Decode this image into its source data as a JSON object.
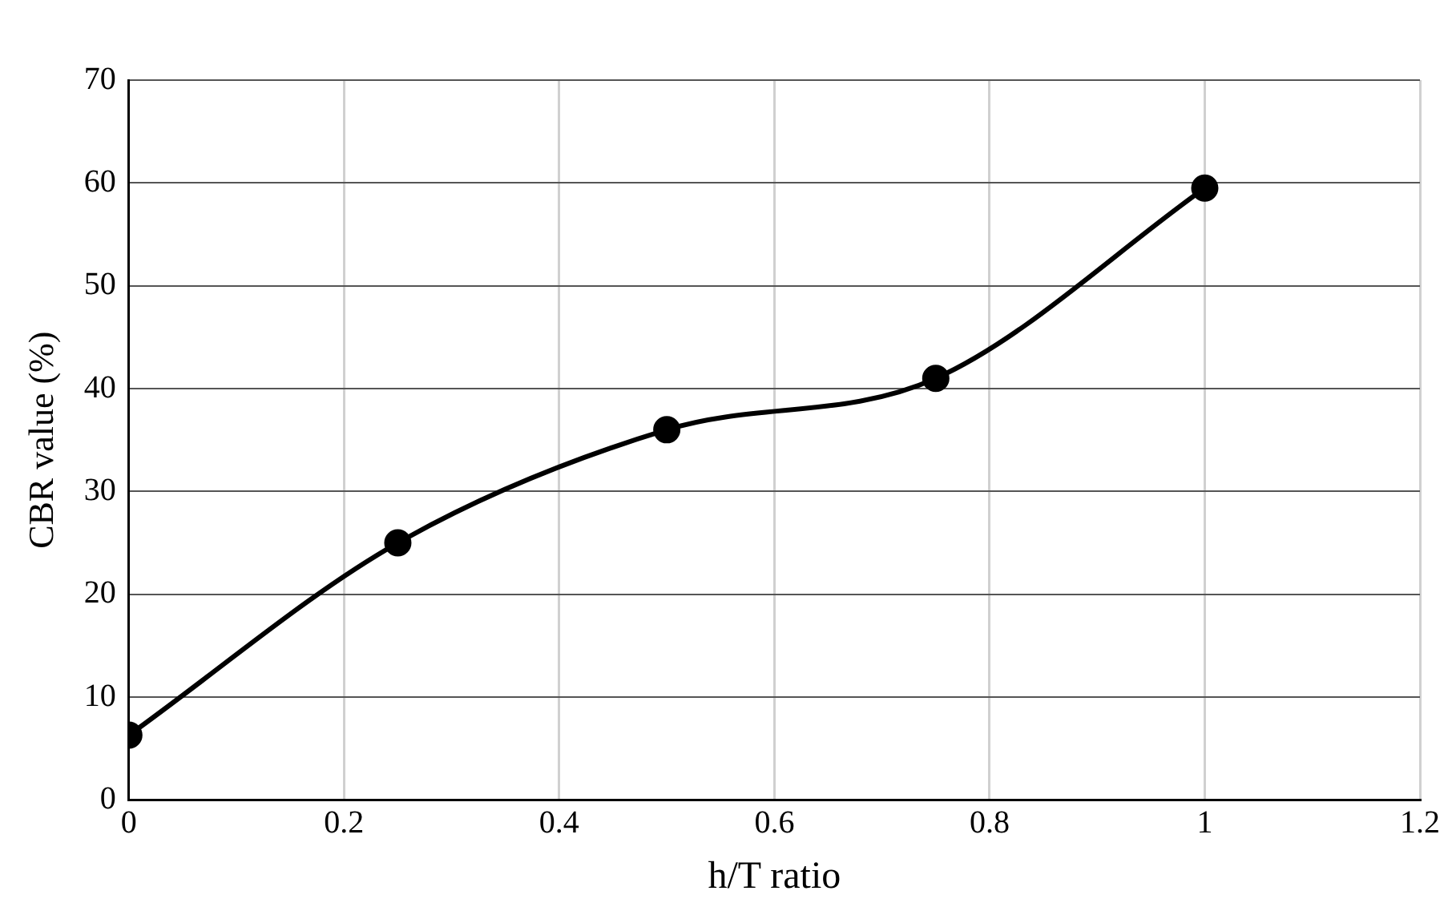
{
  "chart_data": {
    "type": "line",
    "xlabel": "h/T ratio",
    "ylabel": "CBR value (%)",
    "x": [
      0,
      0.25,
      0.5,
      0.75,
      1
    ],
    "series": [
      {
        "color": "#000000",
        "values": [
          6.3,
          25,
          36,
          41,
          59.5
        ]
      }
    ],
    "xlim": [
      0,
      1.2
    ],
    "xticks": [
      0,
      0.2,
      0.4,
      0.6,
      0.8,
      1,
      1.2
    ],
    "ylim": [
      0,
      70
    ],
    "yticks": [
      0,
      10,
      20,
      30,
      40,
      50,
      60,
      70
    ],
    "grid": true,
    "marker": "circle",
    "line_style": "solid",
    "legend": false
  }
}
